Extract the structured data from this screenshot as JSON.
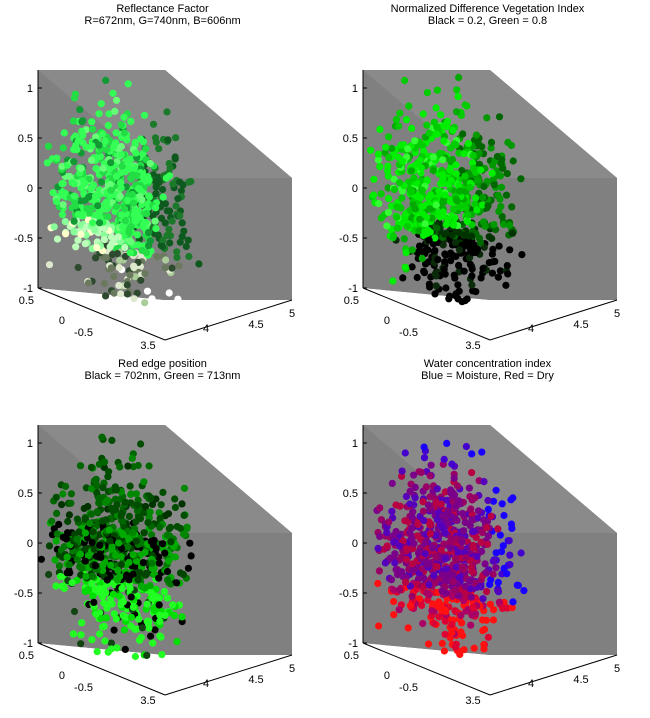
{
  "figure": {
    "background": "#ffffff",
    "box_colors": {
      "top": "#808080",
      "side": "#808080",
      "floor": "#7f7f7f"
    }
  },
  "chart_data": [
    {
      "type": "scatter",
      "subtype": "3d-scatter",
      "title": "Reflectance Factor",
      "subtitle": "R=672nm, G=740nm, B=606nm",
      "z_ticks": [
        "1",
        "0.5",
        "0",
        "-0.5",
        "-1"
      ],
      "x_ticks": [
        "3.5",
        "4",
        "4.5",
        "5"
      ],
      "y_ticks": [
        "0.5",
        "0",
        "-0.5"
      ],
      "color_scheme": "rgb-reflectance",
      "colors": [
        "#33ff55",
        "#22cc44",
        "#119933",
        "#0a5a1a",
        "#2e6b35",
        "#88ff99",
        "#cceecc",
        "#ffffff",
        "#556b55",
        "#aaddaa"
      ],
      "points": "point cloud (~700 points)"
    },
    {
      "type": "scatter",
      "subtype": "3d-scatter",
      "title": "Normalized Difference Vegetation Index",
      "subtitle": "Black = 0.2, Green = 0.8",
      "z_ticks": [
        "1",
        "0.5",
        "0",
        "-0.5",
        "-1"
      ],
      "x_ticks": [
        "3.5",
        "4",
        "4.5",
        "5"
      ],
      "y_ticks": [
        "0.5",
        "0",
        "-0.5"
      ],
      "color_scheme": "ndvi",
      "colors": [
        "#00ff00",
        "#00dd00",
        "#00bb00",
        "#009900",
        "#006600",
        "#000000"
      ],
      "points": "point cloud (~700 points)"
    },
    {
      "type": "scatter",
      "subtype": "3d-scatter",
      "title": "Red edge position",
      "subtitle": "Black = 702nm, Green = 713nm",
      "z_ticks": [
        "1",
        "0.5",
        "0",
        "-0.5",
        "-1"
      ],
      "x_ticks": [
        "3.5",
        "4",
        "4.5",
        "5"
      ],
      "y_ticks": [
        "0.5",
        "0",
        "-0.5"
      ],
      "color_scheme": "red-edge",
      "colors": [
        "#00ff00",
        "#00cc00",
        "#009900",
        "#006600",
        "#003300",
        "#000000"
      ],
      "points": "point cloud (~700 points)"
    },
    {
      "type": "scatter",
      "subtype": "3d-scatter",
      "title": "Water concentration index",
      "subtitle": "Blue = Moisture, Red = Dry",
      "z_ticks": [
        "1",
        "0.5",
        "0",
        "-0.5",
        "-1"
      ],
      "x_ticks": [
        "3.5",
        "4",
        "4.5",
        "5"
      ],
      "y_ticks": [
        "0.5",
        "0",
        "-0.5"
      ],
      "color_scheme": "water-index",
      "colors": [
        "#0000ff",
        "#3300cc",
        "#660099",
        "#990066",
        "#cc0033",
        "#ff0000"
      ],
      "points": "point cloud (~700 points)"
    }
  ]
}
